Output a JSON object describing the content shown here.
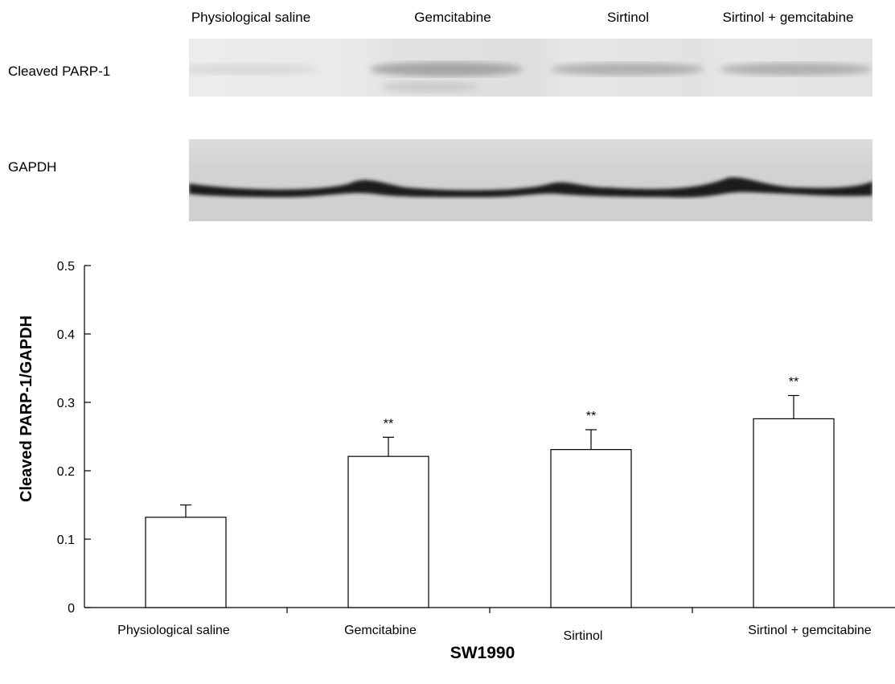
{
  "blot": {
    "lanes": [
      "Physiological saline",
      "Gemcitabine",
      "Sirtinol",
      "Sirtinol + gemcitabine"
    ],
    "rows": [
      "Cleaved PARP-1",
      "GAPDH"
    ]
  },
  "chart_data": {
    "type": "bar",
    "categories": [
      "Physiological saline",
      "Gemcitabine",
      "Sirtinol",
      "Sirtinol + gemcitabine"
    ],
    "values": [
      0.132,
      0.221,
      0.231,
      0.276
    ],
    "errors": [
      0.018,
      0.028,
      0.029,
      0.034
    ],
    "annotations": [
      "",
      "**",
      "**",
      "**"
    ],
    "yticks": [
      "0",
      "0.1",
      "0.2",
      "0.3",
      "0.4",
      "0.5"
    ],
    "ylim": [
      0,
      0.5
    ],
    "ylabel": "Cleaved PARP-1/GAPDH",
    "xlabel": "SW1990",
    "bar_color": "#ffffff"
  }
}
